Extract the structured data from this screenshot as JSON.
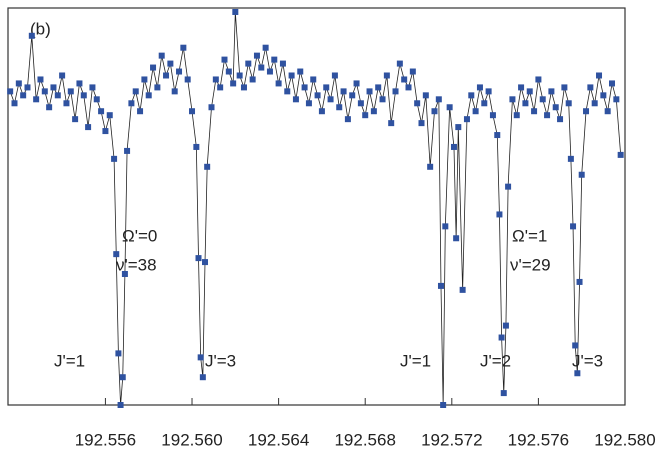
{
  "chart_data": {
    "type": "scatter-line",
    "color": "#2f52a0",
    "line_color": "#222222",
    "annotations": [
      "(b)",
      "Ω'=0",
      "ν'=38",
      "Ω'=1",
      "ν'=29",
      "J'=1",
      "J'=3",
      "J'=1",
      "J'=2",
      "J'=3"
    ],
    "xlim": [
      192.5515,
      192.58
    ],
    "ylim": [
      0,
      1
    ],
    "xticks": [
      192.556,
      {
        "value": 192.56,
        "label": "192.560"
      },
      192.564,
      192.568,
      192.572,
      192.576,
      {
        "value": 192.58,
        "label": "192.580"
      }
    ],
    "x": [
      192.5516,
      192.5518,
      192.552,
      192.5522,
      192.5524,
      192.5526,
      192.5528,
      192.553,
      192.5532,
      192.5534,
      192.5536,
      192.5538,
      192.554,
      192.5542,
      192.5544,
      192.5546,
      192.5548,
      192.555,
      192.5552,
      192.5554,
      192.5556,
      192.5558,
      192.556,
      192.5562,
      192.5564,
      192.5565,
      192.5566,
      192.5567,
      192.5568,
      192.5569,
      192.557,
      192.5572,
      192.5574,
      192.5576,
      192.5578,
      192.558,
      192.5582,
      192.5584,
      192.5586,
      192.5588,
      192.559,
      192.5592,
      192.5594,
      192.5596,
      192.5598,
      192.56,
      192.5602,
      192.5603,
      192.5604,
      192.5605,
      192.5606,
      192.5607,
      192.5609,
      192.5611,
      192.5613,
      192.5615,
      192.5617,
      192.5619,
      192.562,
      192.5622,
      192.5624,
      192.5626,
      192.5628,
      192.563,
      192.5632,
      192.5634,
      192.5636,
      192.5638,
      192.564,
      192.5642,
      192.5644,
      192.5646,
      192.5648,
      192.565,
      192.5652,
      192.5654,
      192.5656,
      192.5658,
      192.566,
      192.5662,
      192.5664,
      192.5666,
      192.5668,
      192.567,
      192.5672,
      192.5674,
      192.5676,
      192.5678,
      192.568,
      192.5682,
      192.5684,
      192.5686,
      192.5688,
      192.569,
      192.5692,
      192.5694,
      192.5696,
      192.5698,
      192.57,
      192.5702,
      192.5704,
      192.5706,
      192.5708,
      192.571,
      192.5712,
      192.5714,
      192.5715,
      192.5716,
      192.5717,
      192.5719,
      192.5721,
      192.5722,
      192.5723,
      192.5725,
      192.5727,
      192.5729,
      192.5731,
      192.5733,
      192.5735,
      192.5737,
      192.5739,
      192.5741,
      192.5742,
      192.5743,
      192.5744,
      192.5745,
      192.5746,
      192.5748,
      192.575,
      192.5752,
      192.5754,
      192.5756,
      192.5758,
      192.576,
      192.5762,
      192.5764,
      192.5766,
      192.5768,
      192.577,
      192.5772,
      192.5774,
      192.5775,
      192.5776,
      192.5777,
      192.5778,
      192.5779,
      192.578,
      192.5782,
      192.5784,
      192.5786,
      192.5788,
      192.579,
      192.5792,
      192.5794,
      192.5796,
      192.5798
    ],
    "values": [
      0.79,
      0.76,
      0.81,
      0.78,
      0.8,
      0.93,
      0.77,
      0.82,
      0.79,
      0.75,
      0.8,
      0.78,
      0.83,
      0.76,
      0.79,
      0.72,
      0.81,
      0.78,
      0.7,
      0.8,
      0.77,
      0.74,
      0.69,
      0.73,
      0.62,
      0.38,
      0.13,
      0.0,
      0.07,
      0.33,
      0.64,
      0.76,
      0.79,
      0.74,
      0.82,
      0.78,
      0.85,
      0.8,
      0.88,
      0.83,
      0.86,
      0.79,
      0.84,
      0.9,
      0.82,
      0.74,
      0.65,
      0.37,
      0.12,
      0.07,
      0.36,
      0.6,
      0.75,
      0.82,
      0.8,
      0.87,
      0.84,
      0.81,
      0.99,
      0.83,
      0.8,
      0.86,
      0.82,
      0.88,
      0.85,
      0.9,
      0.84,
      0.87,
      0.81,
      0.86,
      0.79,
      0.83,
      0.77,
      0.84,
      0.8,
      0.76,
      0.82,
      0.78,
      0.74,
      0.8,
      0.77,
      0.83,
      0.75,
      0.79,
      0.72,
      0.78,
      0.81,
      0.76,
      0.73,
      0.79,
      0.74,
      0.8,
      0.77,
      0.83,
      0.71,
      0.79,
      0.86,
      0.82,
      0.8,
      0.84,
      0.76,
      0.71,
      0.78,
      0.6,
      0.74,
      0.77,
      0.3,
      0.0,
      0.45,
      0.75,
      0.65,
      0.42,
      0.7,
      0.29,
      0.72,
      0.78,
      0.74,
      0.8,
      0.76,
      0.79,
      0.73,
      0.68,
      0.48,
      0.17,
      0.03,
      0.2,
      0.55,
      0.77,
      0.73,
      0.8,
      0.76,
      0.79,
      0.74,
      0.82,
      0.77,
      0.73,
      0.79,
      0.75,
      0.72,
      0.8,
      0.76,
      0.62,
      0.45,
      0.15,
      0.08,
      0.31,
      0.58,
      0.74,
      0.8,
      0.76,
      0.83,
      0.78,
      0.74,
      0.81,
      0.77,
      0.63
    ]
  }
}
